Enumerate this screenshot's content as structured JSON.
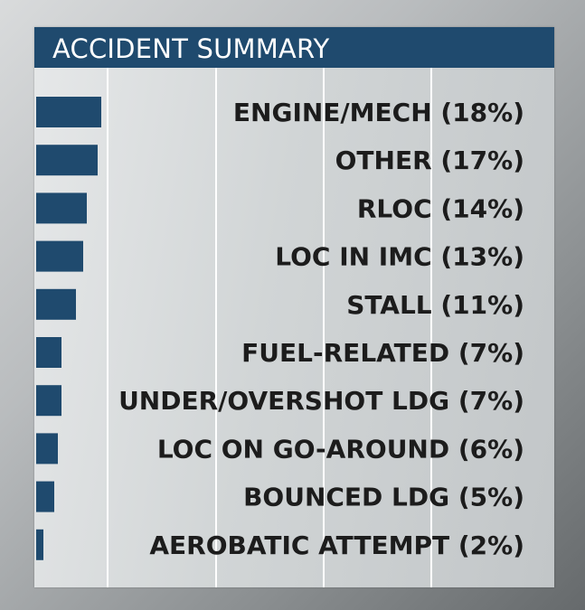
{
  "chart_data": {
    "type": "bar",
    "orientation": "horizontal",
    "title": "ACCIDENT SUMMARY",
    "categories": [
      "ENGINE/MECH",
      "OTHER",
      "RLOC",
      "LOC IN IMC",
      "STALL",
      "FUEL-RELATED",
      "UNDER/OVERSHOT LDG",
      "LOC ON GO-AROUND",
      "BOUNCED LDG",
      "AEROBATIC ATTEMPT"
    ],
    "labels": [
      "ENGINE/MECH (18%)",
      "OTHER (17%)",
      "RLOC (14%)",
      "LOC IN IMC (13%)",
      "STALL (11%)",
      "FUEL-RELATED (7%)",
      "UNDER/OVERSHOT LDG  (7%)",
      "LOC ON GO-AROUND (6%)",
      "BOUNCED LDG (5%)",
      "AEROBATIC ATTEMPT  (2%)"
    ],
    "values": [
      18,
      17,
      14,
      13,
      11,
      7,
      7,
      6,
      5,
      2
    ],
    "unit": "%",
    "xlim": [
      0,
      100
    ],
    "grid": true,
    "legend": "none",
    "colors": {
      "bar": "#1f4a6e",
      "header": "#1f4a6e",
      "grid": "#ffffff",
      "label": "#1c1c1c"
    }
  }
}
